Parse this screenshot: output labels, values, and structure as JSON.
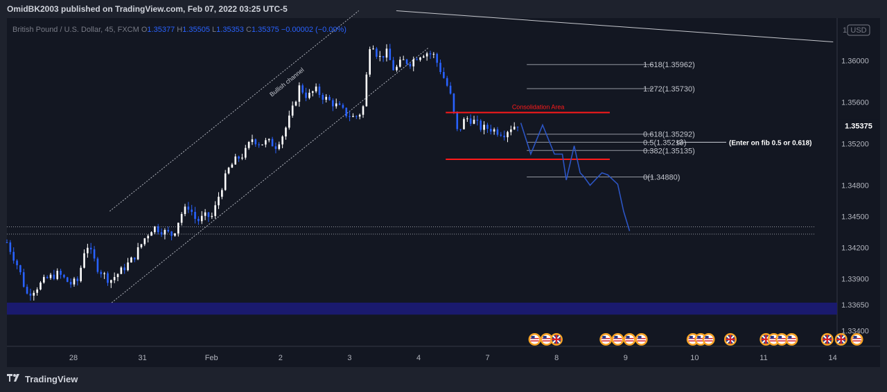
{
  "header": {
    "published": "OmidBK2003 published on TradingView.com, Feb 07, 2022 03:25 UTC-5"
  },
  "symbol": {
    "name": "British Pound / U.S. Dollar, 45, FXCM",
    "o_label": "O",
    "o": "1.35377",
    "h_label": "H",
    "h": "1.35505",
    "l_label": "L",
    "l": "1.35353",
    "c_label": "C",
    "c": "1.35375",
    "change": "−0.00002 (−0.00%)"
  },
  "currency": "USD",
  "currency_prefix": "1",
  "footer": {
    "brand": "TradingView"
  },
  "colors": {
    "background": "#131722",
    "candle_up": "#ffffff",
    "candle_down": "#2962ff",
    "projection": "#2c55c4",
    "zone": "#1a1a6e",
    "resistance": "#ff1a1a",
    "fib": "#9598a1",
    "price_tag": "#131722"
  },
  "chart_data": {
    "type": "candlestick",
    "title": "British Pound / U.S. Dollar, 45, FXCM",
    "ylim": [
      1.3325,
      1.3641
    ],
    "yticks": [
      "1.36000",
      "1.35600",
      "1.35200",
      "1.34800",
      "1.34500",
      "1.34200",
      "1.33900",
      "1.33650",
      "1.33400"
    ],
    "xticks": [
      "28",
      "31",
      "Feb",
      "2",
      "3",
      "4",
      "7",
      "8",
      "9",
      "10",
      "11",
      "14"
    ],
    "last_price": "1.35375",
    "price_path": [
      [
        27.0,
        1.3425
      ],
      [
        27.3,
        1.34
      ],
      [
        27.5,
        1.3375
      ],
      [
        27.7,
        1.338
      ],
      [
        28.0,
        1.339
      ],
      [
        28.3,
        1.3395
      ],
      [
        28.6,
        1.3385
      ],
      [
        28.8,
        1.3388
      ],
      [
        29.0,
        1.3425
      ],
      [
        29.3,
        1.34
      ],
      [
        29.6,
        1.3388
      ],
      [
        29.9,
        1.3398
      ],
      [
        30.2,
        1.341
      ],
      [
        30.5,
        1.343
      ],
      [
        30.7,
        1.344
      ],
      [
        31.0,
        1.3435
      ],
      [
        31.2,
        1.3432
      ],
      [
        31.4,
        1.3452
      ],
      [
        31.6,
        1.346
      ],
      [
        31.8,
        1.3445
      ],
      [
        32.0,
        1.345
      ],
      [
        32.2,
        1.345
      ],
      [
        32.4,
        1.3475
      ],
      [
        32.6,
        1.3495
      ],
      [
        32.8,
        1.3505
      ],
      [
        33.0,
        1.351
      ],
      [
        33.2,
        1.3525
      ],
      [
        33.4,
        1.352
      ],
      [
        33.6,
        1.3522
      ],
      [
        33.8,
        1.3518
      ],
      [
        34.0,
        1.353
      ],
      [
        34.2,
        1.355
      ],
      [
        34.4,
        1.3575
      ],
      [
        34.6,
        1.3565
      ],
      [
        34.8,
        1.3572
      ],
      [
        35.0,
        1.3565
      ],
      [
        35.2,
        1.356
      ],
      [
        35.4,
        1.3555
      ],
      [
        35.6,
        1.3548
      ],
      [
        35.8,
        1.3545
      ],
      [
        36.0,
        1.3552
      ],
      [
        36.2,
        1.3622
      ],
      [
        36.4,
        1.3602
      ],
      [
        36.6,
        1.3608
      ],
      [
        36.8,
        1.359
      ],
      [
        37.0,
        1.36
      ],
      [
        37.2,
        1.3598
      ],
      [
        37.4,
        1.3605
      ],
      [
        37.6,
        1.3608
      ],
      [
        37.8,
        1.3605
      ],
      [
        38.0,
        1.3588
      ],
      [
        38.2,
        1.357
      ],
      [
        38.4,
        1.353
      ],
      [
        38.6,
        1.3545
      ],
      [
        38.8,
        1.3542
      ],
      [
        39.0,
        1.3535
      ],
      [
        39.2,
        1.3535
      ],
      [
        39.4,
        1.3532
      ],
      [
        39.6,
        1.353
      ],
      [
        39.7,
        1.3535
      ],
      [
        40.0,
        1.354
      ]
    ],
    "projection": [
      [
        40.0,
        1.354
      ],
      [
        40.25,
        1.351
      ],
      [
        40.55,
        1.3538
      ],
      [
        40.85,
        1.351
      ],
      [
        41.05,
        1.351
      ],
      [
        41.15,
        1.3485
      ],
      [
        41.35,
        1.3518
      ],
      [
        41.5,
        1.3492
      ],
      [
        41.6,
        1.3488
      ],
      [
        41.75,
        1.348
      ],
      [
        42.05,
        1.3492
      ],
      [
        42.2,
        1.349
      ],
      [
        42.45,
        1.3481
      ],
      [
        42.6,
        1.3455
      ],
      [
        42.75,
        1.3436
      ]
    ],
    "channel": {
      "label": "Bullish channel",
      "upper": [
        [
          29.6,
          1.3455
        ],
        [
          35.9,
          1.3648
        ]
      ],
      "lower": [
        [
          29.65,
          1.3367
        ],
        [
          37.65,
          1.3612
        ]
      ],
      "mid_text_at": [
        33.7,
        1.3565
      ]
    },
    "consolidation": {
      "label": "Consolidation Area",
      "top": 1.355,
      "bottom": 1.3505,
      "x_start": 38.1,
      "x_end": 42.25
    },
    "fib_levels": [
      {
        "ratio": "1.618",
        "price": "1.35962",
        "y": 1.35962
      },
      {
        "ratio": "1.272",
        "price": "1.35730",
        "y": 1.3573
      },
      {
        "ratio": "0.618",
        "price": "1.35292",
        "y": 1.35292
      },
      {
        "ratio": "0.5",
        "price": "1.35214",
        "y": 1.35214
      },
      {
        "ratio": "0.382",
        "price": "1.35135",
        "y": 1.35135
      },
      {
        "ratio": "0",
        "price": "1.34880",
        "y": 1.3488
      }
    ],
    "fib_x_start": 40.15,
    "fib_x_end": 43.35,
    "annotation": "(Enter on fib 0.5 or 0.618)",
    "trend_line": [
      [
        36.85,
        1.3648
      ],
      [
        47.9,
        1.3618
      ]
    ],
    "support_zone": {
      "top": 1.3367,
      "bottom": 1.33555
    },
    "dotted_levels": [
      1.344,
      1.3433
    ],
    "event_icons": [
      {
        "x": 40.35,
        "kind": "us"
      },
      {
        "x": 40.65,
        "kind": "us"
      },
      {
        "x": 40.9,
        "kind": "uk"
      },
      {
        "x": 42.15,
        "kind": "us"
      },
      {
        "x": 42.45,
        "kind": "us"
      },
      {
        "x": 42.75,
        "kind": "us"
      },
      {
        "x": 43.05,
        "kind": "us"
      },
      {
        "x": 44.35,
        "kind": "us"
      },
      {
        "x": 44.55,
        "kind": "us"
      },
      {
        "x": 44.75,
        "kind": "us"
      },
      {
        "x": 45.3,
        "kind": "uk"
      },
      {
        "x": 46.2,
        "kind": "uk"
      },
      {
        "x": 46.4,
        "kind": "us"
      },
      {
        "x": 46.6,
        "kind": "us"
      },
      {
        "x": 46.85,
        "kind": "us"
      },
      {
        "x": 47.75,
        "kind": "uk"
      },
      {
        "x": 48.1,
        "kind": "uk"
      },
      {
        "x": 48.5,
        "kind": "us"
      }
    ]
  }
}
